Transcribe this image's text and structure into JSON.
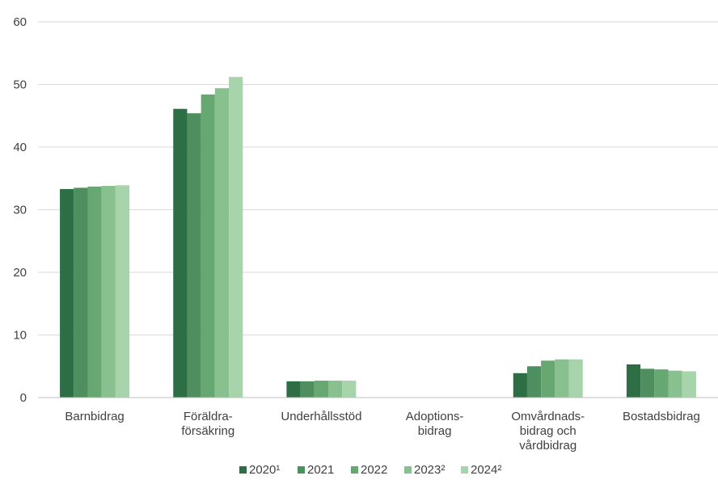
{
  "chart_data": {
    "type": "bar",
    "categories": [
      [
        "Barnbidrag"
      ],
      [
        "Föräldra-",
        "försäkring"
      ],
      [
        "Underhållsstöd"
      ],
      [
        "Adoptions-",
        "bidrag"
      ],
      [
        "Omvårdnads-",
        "bidrag och",
        "vårdbidrag"
      ],
      [
        "Bostadsbidrag"
      ]
    ],
    "series": [
      {
        "name": "2020¹",
        "color": "#2e6e44",
        "values": [
          33.3,
          46.1,
          2.6,
          0.0,
          3.9,
          5.3
        ]
      },
      {
        "name": "2021",
        "color": "#4f8f5f",
        "values": [
          33.5,
          45.4,
          2.6,
          0.0,
          5.0,
          4.6
        ]
      },
      {
        "name": "2022",
        "color": "#67a772",
        "values": [
          33.7,
          48.4,
          2.7,
          0.0,
          5.9,
          4.5
        ]
      },
      {
        "name": "2023²",
        "color": "#88c08f",
        "values": [
          33.8,
          49.4,
          2.7,
          0.0,
          6.1,
          4.3
        ]
      },
      {
        "name": "2024²",
        "color": "#a7d4ab",
        "values": [
          33.9,
          51.2,
          2.7,
          0.0,
          6.1,
          4.2
        ]
      }
    ],
    "ylim": [
      0,
      60
    ],
    "yticks": [
      0,
      10,
      20,
      30,
      40,
      50,
      60
    ],
    "grid": true,
    "legend_position": "bottom-center"
  }
}
